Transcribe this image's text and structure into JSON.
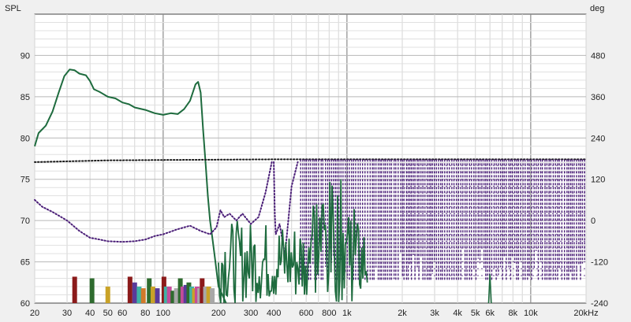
{
  "chart_data": {
    "type": "line",
    "x_scale": "log",
    "xlim": [
      20,
      20000
    ],
    "y_left": {
      "label": "SPL",
      "lim": [
        60,
        95
      ]
    },
    "y_right": {
      "label": "deg",
      "lim": [
        -240,
        600
      ]
    },
    "grid": true,
    "x_ticks": [
      {
        "v": 20,
        "t": "20"
      },
      {
        "v": 30,
        "t": "30"
      },
      {
        "v": 40,
        "t": "40"
      },
      {
        "v": 50,
        "t": "50"
      },
      {
        "v": 60,
        "t": "60"
      },
      {
        "v": 80,
        "t": "80"
      },
      {
        "v": 100,
        "t": "100"
      },
      {
        "v": 200,
        "t": "200"
      },
      {
        "v": 300,
        "t": "300"
      },
      {
        "v": 400,
        "t": "400"
      },
      {
        "v": 600,
        "t": "600"
      },
      {
        "v": 800,
        "t": "800"
      },
      {
        "v": 1000,
        "t": "1k"
      },
      {
        "v": 2000,
        "t": "2k"
      },
      {
        "v": 3000,
        "t": "3k"
      },
      {
        "v": 4000,
        "t": "4k"
      },
      {
        "v": 5000,
        "t": "5k"
      },
      {
        "v": 6000,
        "t": "6k"
      },
      {
        "v": 8000,
        "t": "8k"
      },
      {
        "v": 10000,
        "t": "10k"
      },
      {
        "v": 20000,
        "t": "20kHz"
      }
    ],
    "y_left_ticks": [
      {
        "v": 60,
        "t": "60"
      },
      {
        "v": 65,
        "t": "65"
      },
      {
        "v": 70,
        "t": "70"
      },
      {
        "v": 75,
        "t": "75"
      },
      {
        "v": 80,
        "t": "80"
      },
      {
        "v": 85,
        "t": "85"
      },
      {
        "v": 90,
        "t": "90"
      }
    ],
    "y_right_ticks": [
      {
        "v": -240,
        "t": "-240"
      },
      {
        "v": -120,
        "t": "-120"
      },
      {
        "v": 0,
        "t": "0"
      },
      {
        "v": 120,
        "t": "120"
      },
      {
        "v": 240,
        "t": "240"
      },
      {
        "v": 360,
        "t": "360"
      },
      {
        "v": 480,
        "t": "480"
      }
    ],
    "series": [
      {
        "role": "spl",
        "axis": "left",
        "color": "#1e6b3e",
        "style": "solid",
        "x": [
          20,
          21,
          23,
          25,
          27,
          29,
          31,
          33,
          35,
          38,
          40,
          42,
          45,
          50,
          55,
          60,
          65,
          70,
          80,
          90,
          100,
          110,
          120,
          130,
          140,
          150,
          155,
          160,
          165,
          170,
          175,
          180,
          185,
          190,
          195,
          200,
          210,
          220
        ],
        "y": [
          79,
          80.6,
          81.5,
          83.2,
          85.5,
          87.5,
          88.3,
          88.2,
          87.8,
          87.6,
          86.9,
          85.9,
          85.6,
          85.0,
          84.8,
          84.3,
          84.1,
          83.7,
          83.4,
          83.0,
          82.8,
          83.0,
          82.9,
          83.5,
          84.5,
          86.5,
          86.8,
          85.5,
          81,
          77,
          73,
          70,
          68,
          66,
          64,
          62,
          61,
          60
        ]
      },
      {
        "role": "excess-phase",
        "axis": "right",
        "color": "#1a1a1a",
        "style": "dotted",
        "x": [
          20,
          50,
          100,
          200,
          400,
          1000,
          2000,
          5000,
          20000
        ],
        "y": [
          170,
          175,
          176,
          177,
          178,
          178,
          178,
          178,
          178
        ]
      },
      {
        "role": "phase",
        "axis": "right",
        "color": "#4b1f78",
        "style": "dotted",
        "x": [
          20,
          22,
          25,
          30,
          35,
          40,
          45,
          50,
          60,
          70,
          80,
          90,
          100,
          120,
          140,
          160,
          180,
          195,
          205,
          215,
          230,
          250,
          270,
          300,
          330,
          360,
          390,
          400,
          405,
          410,
          430,
          460,
          500,
          540
        ],
        "y": [
          60,
          40,
          25,
          0,
          -30,
          -50,
          -55,
          -60,
          -62,
          -60,
          -55,
          -45,
          -40,
          -25,
          -15,
          -30,
          -40,
          -20,
          30,
          10,
          20,
          0,
          20,
          -10,
          10,
          80,
          170,
          170,
          20,
          -40,
          -10,
          -100,
          100,
          170
        ]
      }
    ],
    "impulse_bars": [
      {
        "x": 33,
        "h": 63.2,
        "color": "#8b1a1a"
      },
      {
        "x": 41,
        "h": 63.0,
        "color": "#2e6b2e"
      },
      {
        "x": 50,
        "h": 62.0,
        "color": "#c9a227"
      },
      {
        "x": 66,
        "h": 63.2,
        "color": "#8b1a1a"
      },
      {
        "x": 70,
        "h": 62.5,
        "color": "#5a3a9a"
      },
      {
        "x": 74,
        "h": 62.0,
        "color": "#3fb3a5"
      },
      {
        "x": 78,
        "h": 61.8,
        "color": "#d17a2a"
      },
      {
        "x": 84,
        "h": 63.0,
        "color": "#2e6b2e"
      },
      {
        "x": 88,
        "h": 62.0,
        "color": "#c9a227"
      },
      {
        "x": 93,
        "h": 61.8,
        "color": "#5a3a9a"
      },
      {
        "x": 101,
        "h": 63.2,
        "color": "#8b1a1a"
      },
      {
        "x": 104,
        "h": 62.0,
        "color": "#3fb3a5"
      },
      {
        "x": 108,
        "h": 62.0,
        "color": "#c44c9a"
      },
      {
        "x": 113,
        "h": 61.5,
        "color": "#2e6b2e"
      },
      {
        "x": 118,
        "h": 61.8,
        "color": "#a8a8a8"
      },
      {
        "x": 124,
        "h": 63.0,
        "color": "#2e6b2e"
      },
      {
        "x": 128,
        "h": 62.0,
        "color": "#c44c9a"
      },
      {
        "x": 133,
        "h": 62.2,
        "color": "#5a3a9a"
      },
      {
        "x": 138,
        "h": 62.5,
        "color": "#2e6b2e"
      },
      {
        "x": 143,
        "h": 62.0,
        "color": "#3fb3a5"
      },
      {
        "x": 148,
        "h": 61.8,
        "color": "#c9a227"
      },
      {
        "x": 153,
        "h": 62.0,
        "color": "#c44c9a"
      },
      {
        "x": 158,
        "h": 61.8,
        "color": "#a8a8a8"
      },
      {
        "x": 163,
        "h": 63.0,
        "color": "#8b1a1a"
      },
      {
        "x": 170,
        "h": 62.0,
        "color": "#a8a8a8"
      },
      {
        "x": 177,
        "h": 62.0,
        "color": "#c9a227"
      },
      {
        "x": 185,
        "h": 61.8,
        "color": "#a8a8a8"
      }
    ]
  }
}
